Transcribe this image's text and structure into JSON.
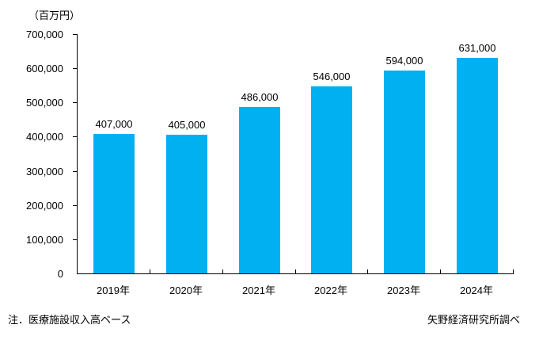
{
  "chart_data": {
    "type": "bar",
    "title": "",
    "unit_label": "（百万円）",
    "categories": [
      "2019年",
      "2020年",
      "2021年",
      "2022年",
      "2023年",
      "2024年"
    ],
    "values": [
      407000,
      405000,
      486000,
      546000,
      594000,
      631000
    ],
    "data_labels": [
      "407,000",
      "405,000",
      "486,000",
      "546,000",
      "594,000",
      "631,000"
    ],
    "ylim": [
      0,
      700000
    ],
    "ytick_step": 100000,
    "ytick_labels": [
      "0",
      "100,000",
      "200,000",
      "300,000",
      "400,000",
      "500,000",
      "600,000",
      "700,000"
    ],
    "grid": false,
    "legend": "none",
    "bar_color": "#00B0F0",
    "axis_color": "#000000",
    "text_color": "#000000",
    "note": "注．医療施設収入高ベース",
    "source": "矢野経済研究所調べ"
  }
}
